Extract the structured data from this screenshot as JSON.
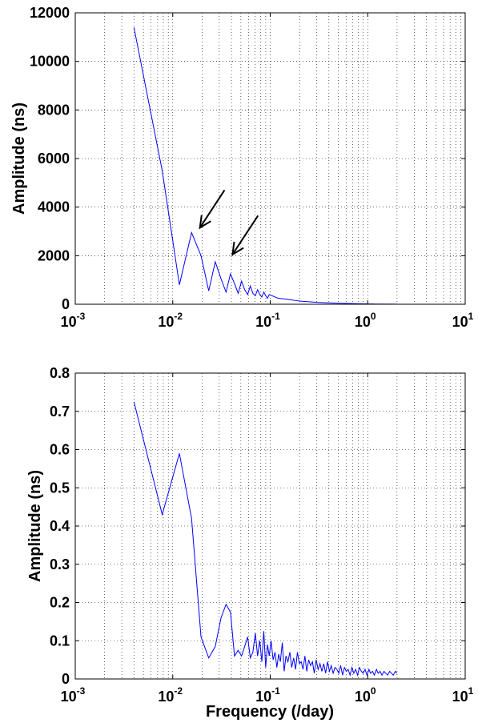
{
  "chart_data": [
    {
      "type": "line",
      "xscale": "log",
      "xlim": [
        0.001,
        10
      ],
      "ylim": [
        0,
        12000
      ],
      "x_ticks": [
        0.001,
        0.01,
        0.1,
        1,
        10
      ],
      "x_tick_labels": [
        {
          "base": "10",
          "exp": "-3"
        },
        {
          "base": "10",
          "exp": "-2"
        },
        {
          "base": "10",
          "exp": "-1"
        },
        {
          "base": "10",
          "exp": "0"
        },
        {
          "base": "10",
          "exp": "1"
        }
      ],
      "y_ticks": [
        0,
        2000,
        4000,
        6000,
        8000,
        10000,
        12000
      ],
      "y_tick_labels": [
        "0",
        "2000",
        "4000",
        "6000",
        "8000",
        "10000",
        "12000"
      ],
      "xlabel": "",
      "ylabel": "Amplitude (ns)",
      "grid": true,
      "color": "#0000ff",
      "annotations": [
        {
          "type": "arrow",
          "from": [
            0.034,
            4700
          ],
          "to": [
            0.019,
            3150
          ]
        },
        {
          "type": "arrow",
          "from": [
            0.075,
            3650
          ],
          "to": [
            0.041,
            2050
          ]
        }
      ],
      "series": [
        {
          "x": [
            0.004,
            0.0078,
            0.0117,
            0.0156,
            0.0195,
            0.0234,
            0.0273,
            0.0313,
            0.0352,
            0.0391,
            0.043,
            0.0469,
            0.0508,
            0.0547,
            0.0586,
            0.0625,
            0.0664,
            0.0703,
            0.0742,
            0.0781,
            0.082,
            0.0859,
            0.0898,
            0.0938,
            0.0977,
            0.12,
            0.15,
            0.2,
            0.3,
            0.5,
            0.8,
            1.2,
            2.0
          ],
          "y": [
            11400,
            5500,
            800,
            2950,
            2000,
            550,
            1750,
            1050,
            500,
            1250,
            850,
            450,
            950,
            600,
            400,
            750,
            450,
            350,
            600,
            400,
            300,
            500,
            350,
            250,
            400,
            250,
            200,
            130,
            80,
            40,
            20,
            10,
            5
          ]
        }
      ]
    },
    {
      "type": "line",
      "xscale": "log",
      "xlim": [
        0.001,
        10
      ],
      "ylim": [
        0,
        0.8
      ],
      "x_ticks": [
        0.001,
        0.01,
        0.1,
        1,
        10
      ],
      "x_tick_labels": [
        {
          "base": "10",
          "exp": "-3"
        },
        {
          "base": "10",
          "exp": "-2"
        },
        {
          "base": "10",
          "exp": "-1"
        },
        {
          "base": "10",
          "exp": "0"
        },
        {
          "base": "10",
          "exp": "1"
        }
      ],
      "y_ticks": [
        0,
        0.1,
        0.2,
        0.3,
        0.4,
        0.5,
        0.6,
        0.7,
        0.8
      ],
      "y_tick_labels": [
        "0",
        "0.1",
        "0.2",
        "0.3",
        "0.4",
        "0.5",
        "0.6",
        "0.7",
        "0.8"
      ],
      "xlabel": "Frequency (/day)",
      "ylabel": "Amplitude (ns)",
      "grid": true,
      "color": "#0000ff",
      "series": [
        {
          "x": [
            0.004,
            0.0078,
            0.0117,
            0.0156,
            0.0195,
            0.0234,
            0.0273,
            0.0313,
            0.0352,
            0.0391,
            0.043,
            0.0469,
            0.0508,
            0.0547,
            0.0586,
            0.0625,
            0.0664,
            0.0703,
            0.0742,
            0.0781,
            0.082,
            0.0859,
            0.0898,
            0.0938,
            0.0977,
            0.102,
            0.107,
            0.112,
            0.117,
            0.122,
            0.127,
            0.133,
            0.139,
            0.145,
            0.152,
            0.159,
            0.166,
            0.174,
            0.182,
            0.19,
            0.199,
            0.208,
            0.217,
            0.227,
            0.237,
            0.248,
            0.259,
            0.271,
            0.283,
            0.296,
            0.31,
            0.324,
            0.339,
            0.354,
            0.37,
            0.387,
            0.405,
            0.423,
            0.442,
            0.462,
            0.483,
            0.505,
            0.528,
            0.552,
            0.577,
            0.603,
            0.63,
            0.659,
            0.689,
            0.72,
            0.753,
            0.787,
            0.823,
            0.86,
            0.899,
            0.94,
            0.983,
            1.03,
            1.07,
            1.12,
            1.17,
            1.23,
            1.28,
            1.34,
            1.4,
            1.47,
            1.53,
            1.6,
            1.68,
            1.75,
            1.83,
            1.92,
            2.0
          ],
          "y": [
            0.725,
            0.43,
            0.59,
            0.42,
            0.11,
            0.055,
            0.085,
            0.16,
            0.195,
            0.175,
            0.06,
            0.075,
            0.06,
            0.085,
            0.11,
            0.055,
            0.07,
            0.12,
            0.06,
            0.1,
            0.045,
            0.125,
            0.03,
            0.09,
            0.06,
            0.1,
            0.05,
            0.07,
            0.03,
            0.065,
            0.045,
            0.095,
            0.02,
            0.06,
            0.045,
            0.07,
            0.03,
            0.055,
            0.025,
            0.07,
            0.04,
            0.045,
            0.025,
            0.06,
            0.02,
            0.05,
            0.035,
            0.045,
            0.015,
            0.05,
            0.025,
            0.04,
            0.02,
            0.04,
            0.015,
            0.045,
            0.02,
            0.035,
            0.015,
            0.03,
            0.025,
            0.015,
            0.035,
            0.01,
            0.03,
            0.02,
            0.025,
            0.01,
            0.03,
            0.015,
            0.025,
            0.01,
            0.03,
            0.02,
            0.015,
            0.025,
            0.01,
            0.025,
            0.015,
            0.02,
            0.01,
            0.025,
            0.015,
            0.02,
            0.01,
            0.02,
            0.015,
            0.01,
            0.02,
            0.015,
            0.01,
            0.02,
            0.015
          ]
        }
      ]
    }
  ]
}
